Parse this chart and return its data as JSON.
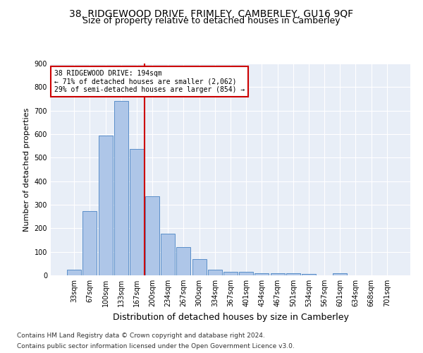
{
  "title1": "38, RIDGEWOOD DRIVE, FRIMLEY, CAMBERLEY, GU16 9QF",
  "title2": "Size of property relative to detached houses in Camberley",
  "xlabel": "Distribution of detached houses by size in Camberley",
  "ylabel": "Number of detached properties",
  "footnote1": "Contains HM Land Registry data © Crown copyright and database right 2024.",
  "footnote2": "Contains public sector information licensed under the Open Government Licence v3.0.",
  "bar_labels": [
    "33sqm",
    "67sqm",
    "100sqm",
    "133sqm",
    "167sqm",
    "200sqm",
    "234sqm",
    "267sqm",
    "300sqm",
    "334sqm",
    "367sqm",
    "401sqm",
    "434sqm",
    "467sqm",
    "501sqm",
    "534sqm",
    "567sqm",
    "601sqm",
    "634sqm",
    "668sqm",
    "701sqm"
  ],
  "bar_values": [
    25,
    272,
    594,
    740,
    538,
    335,
    178,
    120,
    68,
    25,
    14,
    15,
    10,
    10,
    10,
    5,
    0,
    8,
    0,
    0,
    0
  ],
  "bar_color": "#aec6e8",
  "bar_edge_color": "#5b8fc9",
  "annotation_text": "38 RIDGEWOOD DRIVE: 194sqm\n← 71% of detached houses are smaller (2,062)\n29% of semi-detached houses are larger (854) →",
  "annotation_box_color": "#ffffff",
  "annotation_box_edge": "#cc0000",
  "line_color": "#cc0000",
  "ylim": [
    0,
    900
  ],
  "yticks": [
    0,
    100,
    200,
    300,
    400,
    500,
    600,
    700,
    800,
    900
  ],
  "background_color": "#e8eef7",
  "grid_color": "#ffffff",
  "title1_fontsize": 10,
  "title2_fontsize": 9,
  "axis_label_fontsize": 8,
  "tick_fontsize": 7,
  "footnote_fontsize": 6.5,
  "annotation_fontsize": 7
}
